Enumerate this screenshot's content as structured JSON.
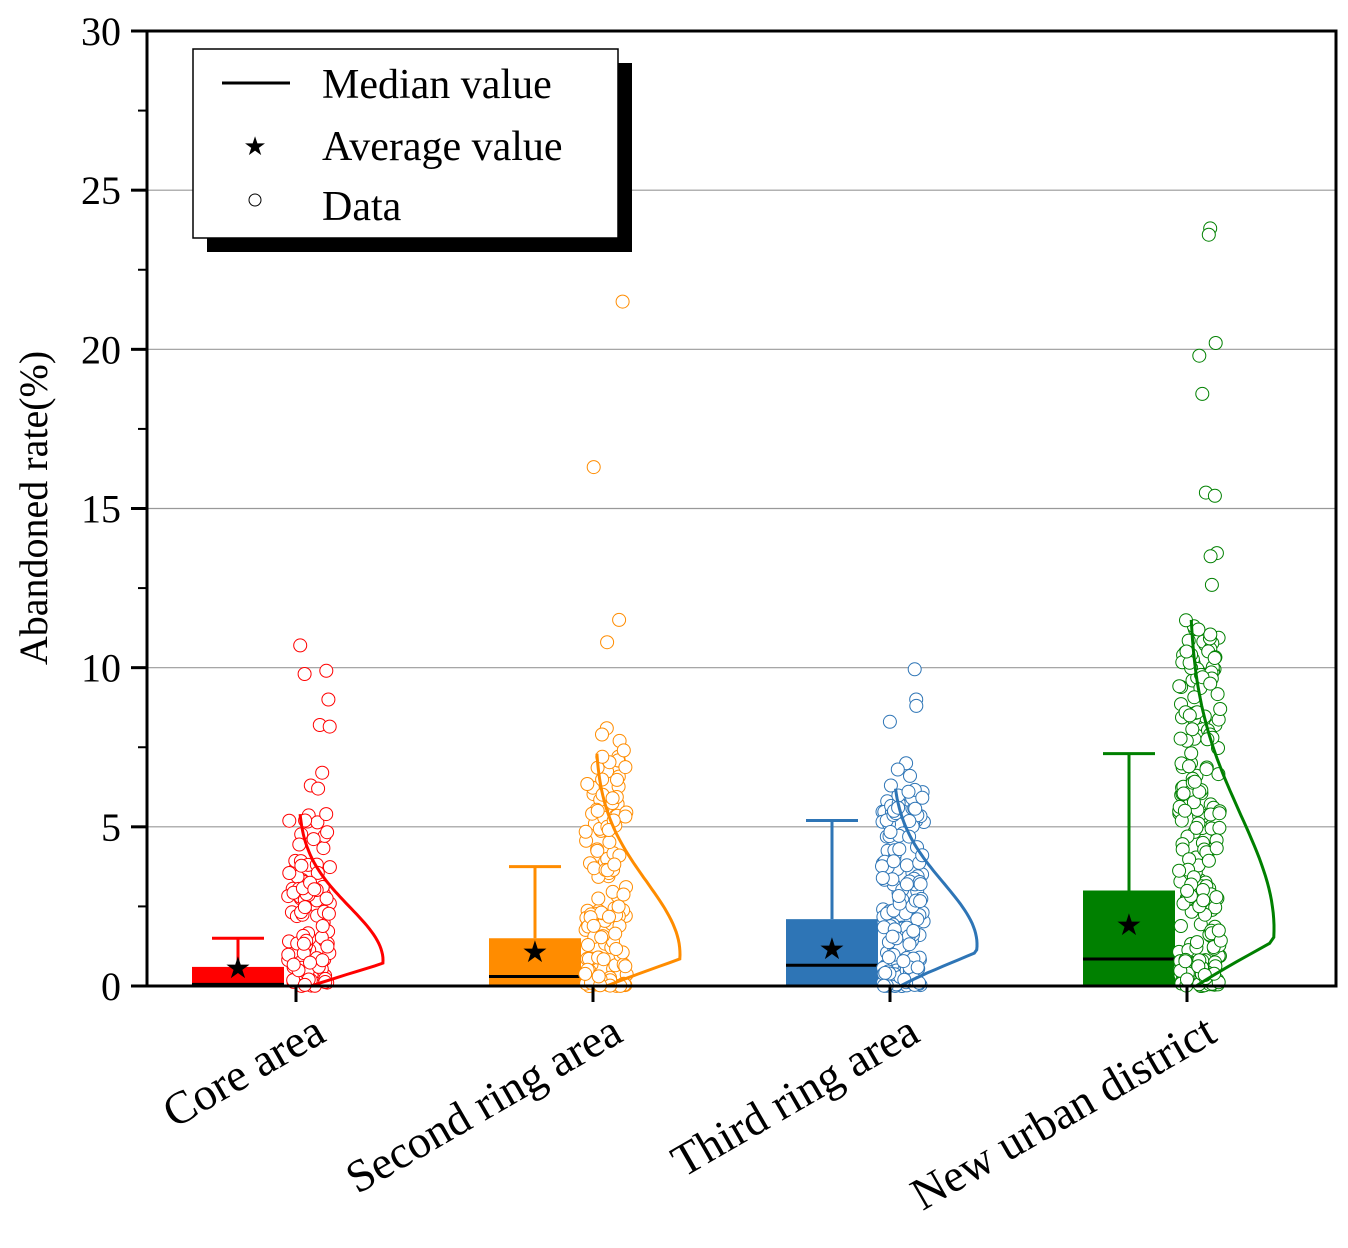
{
  "chart_data": {
    "type": "box",
    "ylabel": "Abandoned rate(%)",
    "xlabel": "",
    "ylim": [
      0,
      30
    ],
    "yticks": [
      0,
      5,
      10,
      15,
      20,
      25,
      30
    ],
    "grid": true,
    "legend_position": "top-left",
    "legend": [
      {
        "key": "median",
        "label": "Median value"
      },
      {
        "key": "average",
        "label": "Average value"
      },
      {
        "key": "data",
        "label": "Data"
      }
    ],
    "categories": [
      "Core area",
      "Second ring area",
      "Third ring area",
      "New urban district"
    ],
    "series": [
      {
        "name": "Core area",
        "color": "#ff0000",
        "q1": 0,
        "median": 0.05,
        "q3": 0.6,
        "whisker_high": 1.5,
        "mean": 0.6,
        "curve_max": 5.4,
        "curve_mode": 0.8,
        "outliers": [
          10.7,
          9.9,
          9.8,
          9.0,
          8.2,
          8.15,
          6.7,
          6.3,
          6.2,
          5.4,
          5.2
        ]
      },
      {
        "name": "Second ring area",
        "color": "#ff8c00",
        "q1": 0,
        "median": 0.3,
        "q3": 1.5,
        "whisker_high": 3.75,
        "mean": 1.1,
        "curve_max": 7.3,
        "curve_mode": 1.0,
        "outliers": [
          21.5,
          16.3,
          11.5,
          10.8,
          8.1,
          7.9,
          7.7,
          7.4,
          7.2,
          5.9,
          5.5,
          5.2,
          4.9
        ]
      },
      {
        "name": "Third ring area",
        "color": "#2e75b6",
        "q1": 0,
        "median": 0.65,
        "q3": 2.1,
        "whisker_high": 5.2,
        "mean": 1.2,
        "curve_max": 6.2,
        "curve_mode": 1.3,
        "outliers": [
          9.95,
          9.0,
          8.8,
          8.3,
          7.0,
          6.8,
          6.6,
          6.3,
          6.1,
          5.6
        ]
      },
      {
        "name": "New urban district",
        "color": "#008000",
        "q1": 0,
        "median": 0.85,
        "q3": 3.0,
        "whisker_high": 7.3,
        "mean": 1.95,
        "curve_max": 11.5,
        "curve_mode": 1.8,
        "outliers": [
          23.8,
          23.6,
          20.2,
          19.8,
          18.6,
          15.5,
          15.4,
          13.6,
          13.5,
          12.6,
          11.2,
          9.7,
          9.5,
          8.6,
          8.5,
          7.9,
          7.8,
          7.75
        ]
      }
    ]
  }
}
